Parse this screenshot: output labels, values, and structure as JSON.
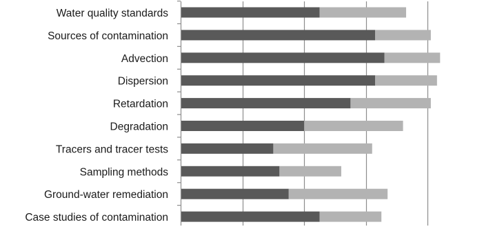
{
  "chart_data": {
    "type": "bar",
    "orientation": "horizontal",
    "stacked": true,
    "categories": [
      "Water quality standards",
      "Sources of contamination",
      "Advection",
      "Dispersion",
      "Retardation",
      "Degradation",
      "Tracers and tracer tests",
      "Sampling methods",
      "Ground-water remediation",
      "Case studies of contamination"
    ],
    "series": [
      {
        "color": "#595959",
        "values": [
          4.5,
          6.3,
          6.6,
          6.3,
          5.5,
          4.0,
          3.0,
          3.2,
          3.5,
          4.5
        ]
      },
      {
        "color": "#b3b3b3",
        "values": [
          2.8,
          1.8,
          1.8,
          2.0,
          2.6,
          3.2,
          3.2,
          2.0,
          3.2,
          2.0
        ]
      }
    ],
    "xlim": [
      0,
      10
    ],
    "x_gridlines": [
      2,
      4,
      6,
      8
    ],
    "grid": true,
    "legend": "none",
    "title": "",
    "xlabel": "",
    "ylabel": ""
  }
}
